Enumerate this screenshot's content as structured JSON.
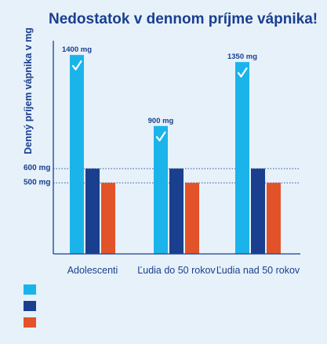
{
  "chart_data": {
    "type": "bar",
    "title": "Nedostatok v dennom príjme vápnika!",
    "ylabel": "Denný príjem vápnika v mg",
    "xlabel": "",
    "categories": [
      "Adolescenti",
      "Ľudia do 50 rokov",
      "Ľudia nad 50 rokov"
    ],
    "series": [
      {
        "values": [
          1400,
          900,
          1350
        ],
        "color": "#1ab4ea",
        "labels": [
          "1400 mg",
          "900 mg",
          "1350 mg"
        ],
        "marker": "checkmark-icon"
      },
      {
        "values": [
          600,
          600,
          600
        ],
        "color": "#1a3f8f"
      },
      {
        "values": [
          500,
          500,
          500
        ],
        "color": "#e2532a"
      }
    ],
    "reference_lines": [
      {
        "value": 600,
        "label": "600 mg"
      },
      {
        "value": 500,
        "label": "500 mg"
      }
    ],
    "ylim": [
      0,
      1500
    ],
    "grid": false,
    "legend_position": "bottom-left",
    "legend_labels_visible": false
  }
}
